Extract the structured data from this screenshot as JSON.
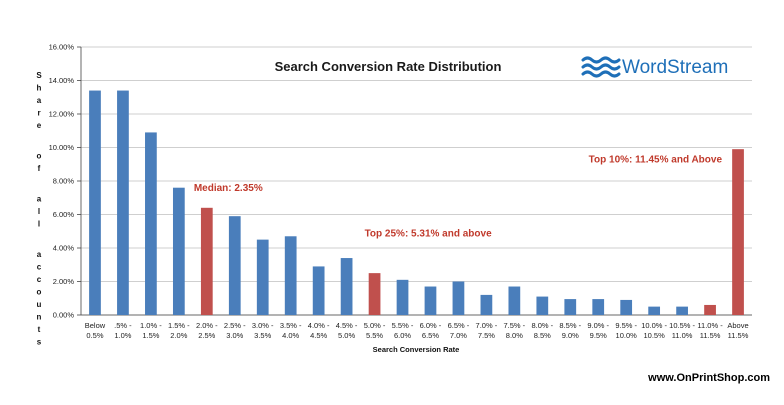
{
  "brand": {
    "name": "WordStream"
  },
  "footer": {
    "site": "www.OnPrintShop.com"
  },
  "chart_data": {
    "type": "bar",
    "title": "Search Conversion Rate Distribution",
    "xlabel": "Search Conversion Rate",
    "ylabel": "Share of all accounts",
    "ylim": [
      0,
      16
    ],
    "y_ticks": [
      "0.00%",
      "2.00%",
      "4.00%",
      "6.00%",
      "8.00%",
      "10.00%",
      "12.00%",
      "14.00%",
      "16.00%"
    ],
    "grid": true,
    "categories": [
      [
        "Below",
        "0.5%"
      ],
      [
        ".5% -",
        "1.0%"
      ],
      [
        "1.0% -",
        "1.5%"
      ],
      [
        "1.5% -",
        "2.0%"
      ],
      [
        "2.0% -",
        "2.5%"
      ],
      [
        "2.5% -",
        "3.0%"
      ],
      [
        "3.0% -",
        "3.5%"
      ],
      [
        "3.5% -",
        "4.0%"
      ],
      [
        "4.0% -",
        "4.5%"
      ],
      [
        "4.5% -",
        "5.0%"
      ],
      [
        "5.0% -",
        "5.5%"
      ],
      [
        "5.5% -",
        "6.0%"
      ],
      [
        "6.0% -",
        "6.5%"
      ],
      [
        "6.5% -",
        "7.0%"
      ],
      [
        "7.0% -",
        "7.5%"
      ],
      [
        "7.5% -",
        "8.0%"
      ],
      [
        "8.0% -",
        "8.5%"
      ],
      [
        "8.5% -",
        "9.0%"
      ],
      [
        "9.0% -",
        "9.5%"
      ],
      [
        "9.5% -",
        "10.0%"
      ],
      [
        "10.0% -",
        "10.5%"
      ],
      [
        "10.5% -",
        "11.0%"
      ],
      [
        "11.0% -",
        "11.5%"
      ],
      [
        "Above",
        "11.5%"
      ]
    ],
    "values": [
      13.4,
      13.4,
      10.9,
      7.6,
      6.4,
      5.9,
      4.5,
      4.7,
      2.9,
      3.4,
      2.5,
      2.1,
      1.7,
      2.0,
      1.2,
      1.7,
      1.1,
      0.95,
      0.95,
      0.9,
      0.5,
      0.5,
      0.6,
      9.9
    ],
    "highlight_indices": [
      4,
      10,
      22,
      23
    ],
    "colors": {
      "bar": "#4a7ebb",
      "highlight": "#c0504d",
      "grid": "#bfbfbf",
      "annotation": "#c0392b"
    },
    "annotations": [
      {
        "text": "Median: 2.35%",
        "at_category": 4,
        "value": 7.4
      },
      {
        "text": "Top 25%: 5.31% and above",
        "at_category": 10,
        "value": 4.7
      },
      {
        "text": "Top 10%: 11.45% and Above",
        "at_category": 23,
        "value": 9.1
      }
    ]
  }
}
